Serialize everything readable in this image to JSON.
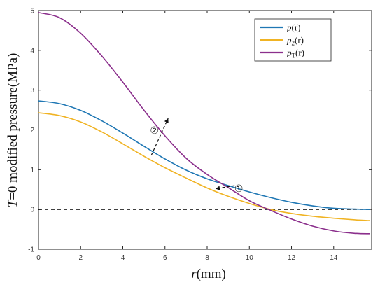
{
  "chart_data": {
    "type": "line",
    "xlabel": {
      "italic": "r",
      "rest": "(mm)"
    },
    "ylabel": {
      "italic": "T",
      "rest": "=0 modified pressure(MPa)"
    },
    "xlim": [
      0,
      15.8
    ],
    "ylim": [
      -1,
      5
    ],
    "x_ticks": [
      "0",
      "2",
      "4",
      "6",
      "8",
      "10",
      "12",
      "14"
    ],
    "x_tick_values": [
      0,
      2,
      4,
      6,
      8,
      10,
      12,
      14
    ],
    "y_ticks": [
      "-1",
      "0",
      "1",
      "2",
      "3",
      "4",
      "5"
    ],
    "y_tick_values": [
      -1,
      0,
      1,
      2,
      3,
      4,
      5
    ],
    "grid": false,
    "legend_position": "top-right",
    "series": [
      {
        "name": "p(r)",
        "name_italic": "p",
        "name_sub": "",
        "name_rest": "(r)",
        "color": "#1f77b4",
        "x": [
          0,
          1,
          2,
          3,
          4,
          5,
          6,
          7,
          8,
          9,
          10,
          11,
          12,
          13,
          14,
          15,
          15.7
        ],
        "y": [
          2.73,
          2.66,
          2.49,
          2.23,
          1.92,
          1.59,
          1.27,
          0.99,
          0.77,
          0.6,
          0.44,
          0.3,
          0.18,
          0.09,
          0.03,
          0.01,
          0.0
        ]
      },
      {
        "name": "p2(r)",
        "name_italic": "p",
        "name_sub": "2",
        "name_rest": "(r)",
        "color": "#f0b323",
        "x": [
          0,
          1,
          2,
          3,
          4,
          5,
          6,
          7,
          8,
          9,
          10,
          11,
          12,
          13,
          14,
          15,
          15.7
        ],
        "y": [
          2.43,
          2.36,
          2.2,
          1.95,
          1.65,
          1.34,
          1.05,
          0.79,
          0.54,
          0.33,
          0.15,
          0.0,
          -0.1,
          -0.17,
          -0.22,
          -0.26,
          -0.28
        ]
      },
      {
        "name": "pT(r)",
        "name_italic": "p",
        "name_sub": "T",
        "name_rest": "(r)",
        "color": "#8b2f8c",
        "x": [
          0,
          1,
          2,
          3,
          4,
          5,
          6,
          7,
          8,
          9,
          10,
          11,
          12,
          13,
          14,
          15,
          15.7
        ],
        "y": [
          4.95,
          4.82,
          4.43,
          3.86,
          3.2,
          2.5,
          1.85,
          1.29,
          0.88,
          0.55,
          0.22,
          -0.02,
          -0.24,
          -0.42,
          -0.54,
          -0.6,
          -0.61
        ]
      }
    ],
    "reference_line": {
      "y": 0,
      "style": "dashed",
      "color": "#000000"
    },
    "annotations": [
      {
        "label": "①",
        "from": [
          9.3,
          0.6
        ],
        "to": [
          8.4,
          0.52
        ],
        "text_at": [
          9.5,
          0.44
        ]
      },
      {
        "label": "②",
        "from": [
          5.35,
          1.36
        ],
        "to": [
          6.15,
          2.29
        ],
        "text_at": [
          5.5,
          1.9
        ]
      }
    ]
  }
}
